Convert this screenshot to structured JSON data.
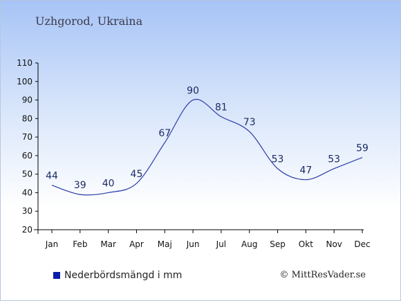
{
  "title": "Uzhgorod, Ukraina",
  "legend_label": "Nederbördsmängd i mm",
  "credit": "© MittResVader.se",
  "colors": {
    "line": "#2a3ca8",
    "label": "#1c2a66",
    "swatch": "#0a1fa8"
  },
  "chart_data": {
    "type": "line",
    "categories": [
      "Jan",
      "Feb",
      "Mar",
      "Apr",
      "Maj",
      "Jun",
      "Jul",
      "Aug",
      "Sep",
      "Okt",
      "Nov",
      "Dec"
    ],
    "series": [
      {
        "name": "Nederbördsmängd i mm",
        "values": [
          44,
          39,
          40,
          45,
          67,
          90,
          81,
          73,
          53,
          47,
          53,
          59
        ]
      }
    ],
    "ylim": [
      20,
      110
    ],
    "yticks": [
      20,
      30,
      40,
      50,
      60,
      70,
      80,
      90,
      100,
      110
    ],
    "grid": false,
    "legend": "bottom-left"
  }
}
